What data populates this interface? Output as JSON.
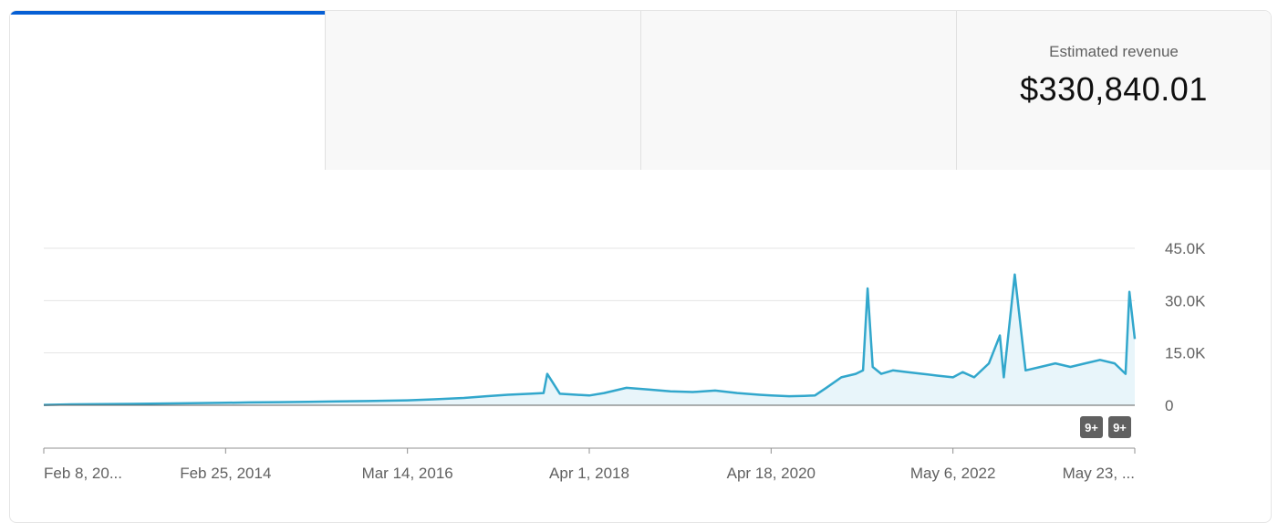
{
  "metric_tabs": [
    {
      "label": "",
      "value": "",
      "active": true
    },
    {
      "label": "",
      "value": "",
      "active": false
    },
    {
      "label": "",
      "value": "",
      "active": false
    },
    {
      "label": "Estimated revenue",
      "value": "$330,840.01",
      "active": false
    }
  ],
  "colors": {
    "accent": "#065fd4",
    "line": "#32a7cc",
    "area": "#e8f5fa",
    "badge": "#606060"
  },
  "chart_data": {
    "type": "area",
    "title": "",
    "xlabel": "",
    "ylabel": "",
    "x_tick_labels": [
      "Feb 8, 20...",
      "Feb 25, 2014",
      "Mar 14, 2016",
      "Apr 1, 2018",
      "Apr 18, 2020",
      "May 6, 2022",
      "May 23, ..."
    ],
    "y_tick_labels": [
      "0",
      "15.0K",
      "30.0K",
      "45.0K"
    ],
    "y_ticks": [
      0,
      15000,
      30000,
      45000
    ],
    "ylim": [
      0,
      45000
    ],
    "xlim": [
      "2012-02-08",
      "2024-05-23"
    ],
    "grid": true,
    "y_axis_position": "right",
    "series": [
      {
        "x": [
          "2012-02-08",
          "2012-06-01",
          "2012-10-01",
          "2013-02-01",
          "2013-06-01",
          "2013-10-01",
          "2014-02-25",
          "2014-06-01",
          "2014-10-01",
          "2015-02-01",
          "2015-06-01",
          "2015-10-01",
          "2016-03-14",
          "2016-07-01",
          "2016-11-01",
          "2017-02-01",
          "2017-05-01",
          "2017-08-01",
          "2017-09-25",
          "2017-10-10",
          "2017-12-01",
          "2018-04-01",
          "2018-06-01",
          "2018-09-01",
          "2018-12-01",
          "2019-03-01",
          "2019-06-01",
          "2019-09-01",
          "2019-12-01",
          "2020-03-01",
          "2020-04-18",
          "2020-07-01",
          "2020-09-01",
          "2020-10-15",
          "2020-12-01",
          "2021-02-01",
          "2021-04-01",
          "2021-05-01",
          "2021-05-20",
          "2021-06-10",
          "2021-07-15",
          "2021-09-01",
          "2021-11-01",
          "2022-01-01",
          "2022-03-01",
          "2022-05-06",
          "2022-06-15",
          "2022-08-01",
          "2022-10-01",
          "2022-11-15",
          "2022-12-01",
          "2023-01-15",
          "2023-03-01",
          "2023-05-01",
          "2023-07-01",
          "2023-09-01",
          "2023-11-01",
          "2024-01-01",
          "2024-03-01",
          "2024-04-15",
          "2024-05-01",
          "2024-05-23"
        ],
        "y": [
          100,
          250,
          350,
          400,
          500,
          600,
          700,
          800,
          900,
          1000,
          1100,
          1200,
          1400,
          1700,
          2100,
          2600,
          3000,
          3300,
          3500,
          9000,
          3300,
          2800,
          3500,
          5000,
          4500,
          4000,
          3800,
          4200,
          3500,
          3000,
          2800,
          2600,
          2700,
          2800,
          5000,
          8000,
          9000,
          10000,
          33500,
          11000,
          9000,
          10000,
          9500,
          9000,
          8500,
          8000,
          9500,
          8000,
          12000,
          20000,
          8000,
          37500,
          10000,
          11000,
          12000,
          11000,
          12000,
          13000,
          12000,
          9000,
          32500,
          19000
        ]
      }
    ],
    "badges": [
      "9+",
      "9+"
    ]
  }
}
